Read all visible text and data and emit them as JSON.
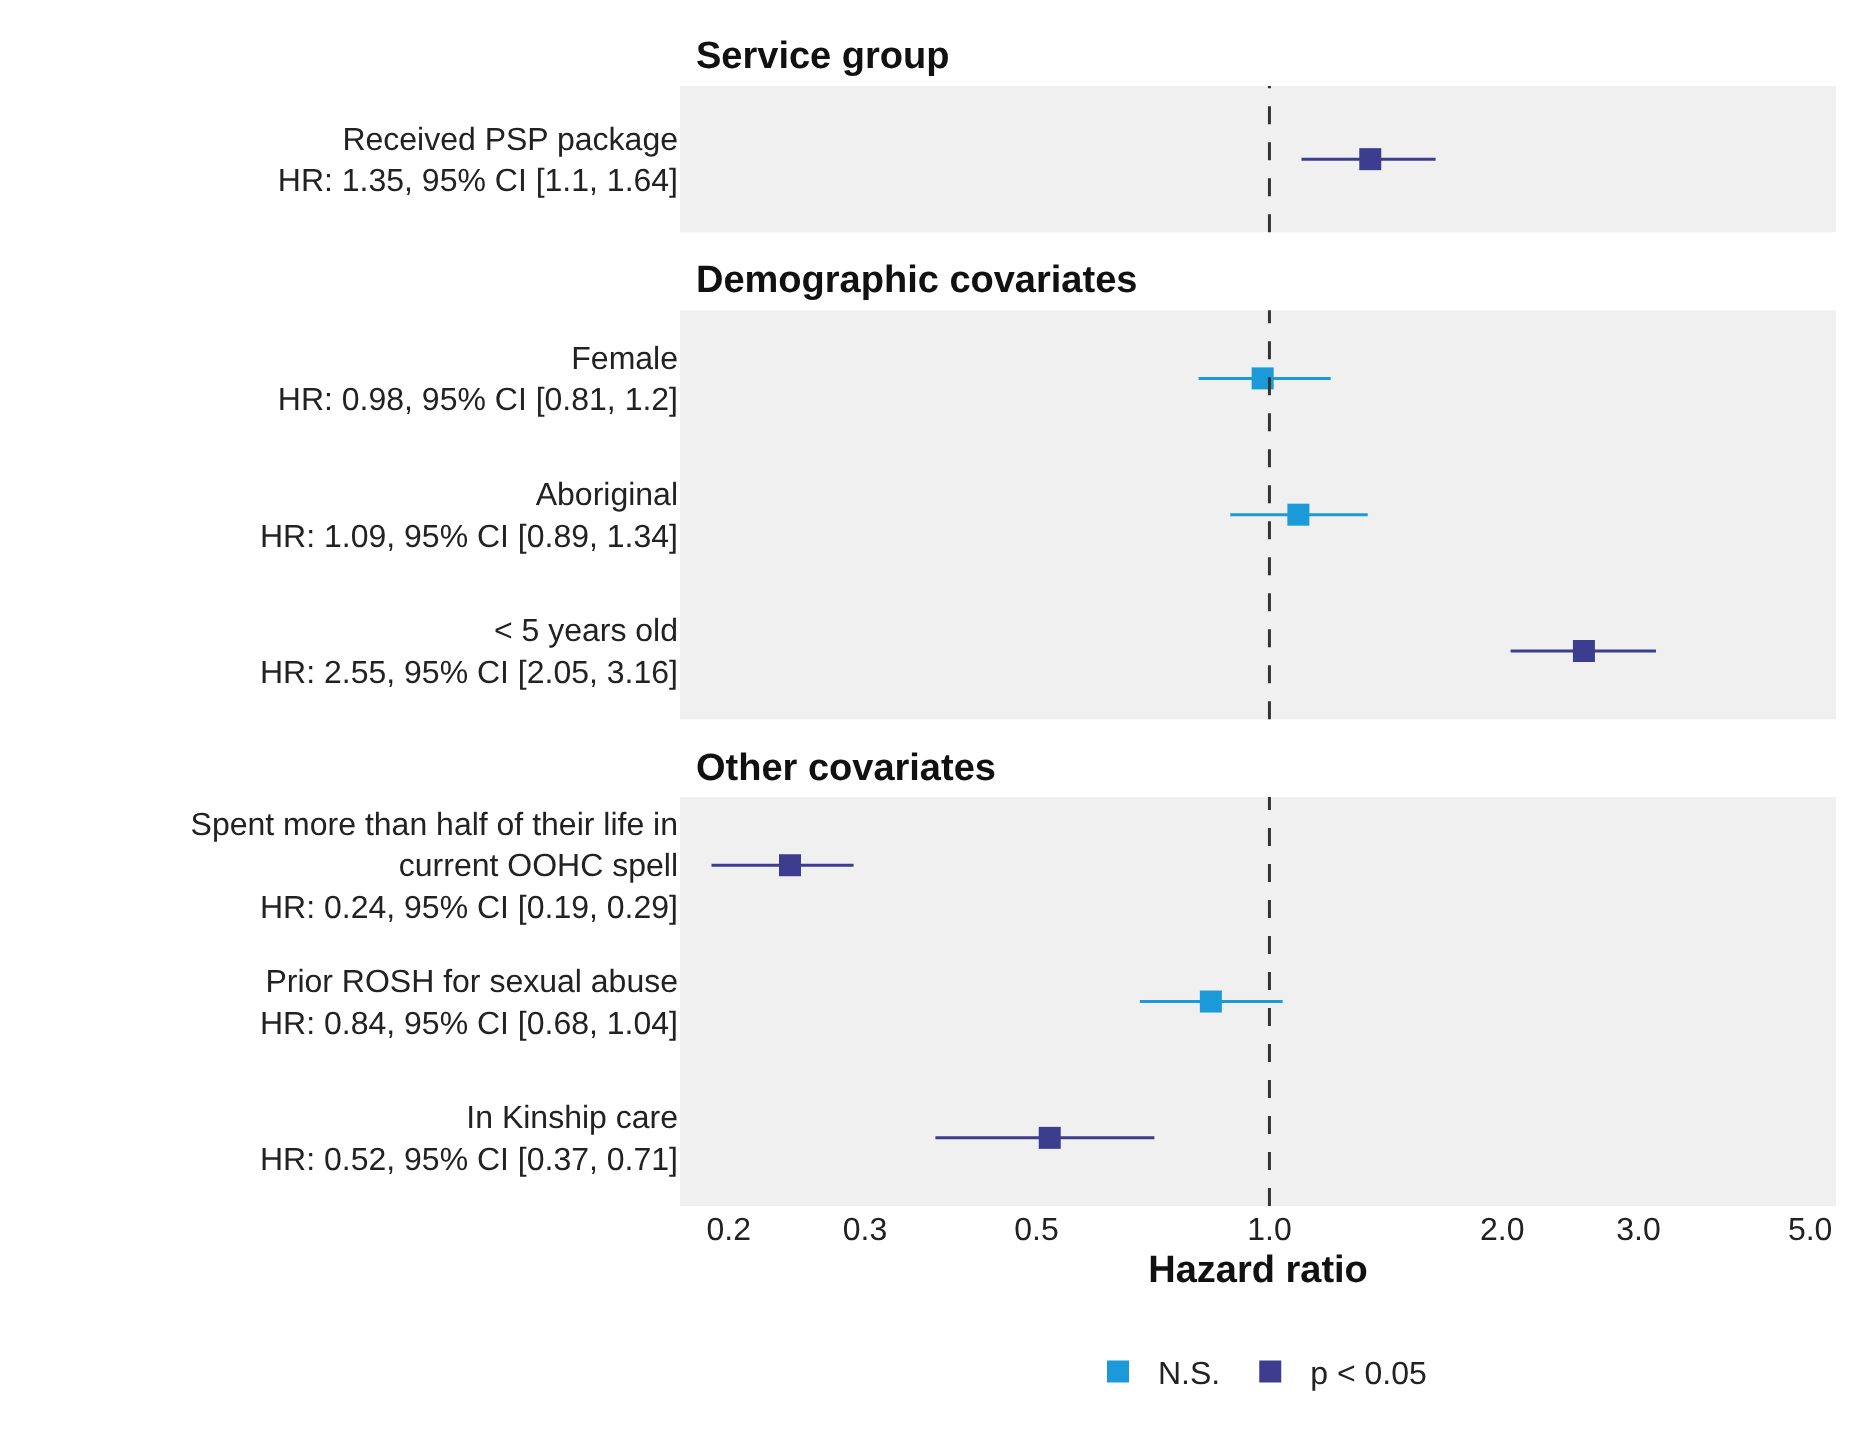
{
  "chart_data": [
    {
      "type": "scatter",
      "orientation": "horizontal",
      "title": "Service group",
      "categories": [
        "Received PSP package\nHR: 1.35, 95% CI [1.1, 1.64]"
      ],
      "series": [
        {
          "color": "#3d3d8f",
          "values": [
            1.35
          ],
          "errors": [
            [
              1.1,
              1.64
            ]
          ]
        }
      ],
      "xlim": [
        0.173,
        5.4
      ],
      "log": "x",
      "marker": "square",
      "tick_labels": "y",
      "ref_lines": [
        {
          "axis": "x",
          "value": 1,
          "color": "#333333",
          "line_style": "dashed"
        }
      ]
    },
    {
      "type": "scatter",
      "orientation": "horizontal",
      "title": "Demographic covariates",
      "categories": [
        "Female\nHR: 0.98, 95% CI [0.81, 1.2]",
        "Aboriginal\nHR: 1.09, 95% CI [0.89, 1.34]",
        "< 5 years old\nHR: 2.55, 95% CI [2.05, 3.16]"
      ],
      "series": [
        {
          "color": "#1a9ad8",
          "values": [
            0.98,
            1.09,
            null
          ],
          "errors": [
            [
              0.81,
              1.2
            ],
            [
              0.89,
              1.34
            ],
            null
          ]
        },
        {
          "color": "#3d3d8f",
          "values": [
            null,
            null,
            2.55
          ],
          "errors": [
            null,
            null,
            [
              2.05,
              3.16
            ]
          ]
        }
      ],
      "xlim": [
        0.173,
        5.4
      ],
      "log": "x",
      "marker": "square",
      "tick_labels": "y",
      "ref_lines": [
        {
          "axis": "x",
          "value": 1,
          "color": "#333333",
          "line_style": "dashed"
        }
      ]
    },
    {
      "type": "scatter",
      "orientation": "horizontal",
      "title": "Other covariates",
      "xlabel": "Hazard ratio",
      "categories": [
        "Spent more than half of their life in\ncurrent OOHC spell\nHR: 0.24, 95% CI [0.19, 0.29]",
        "Prior ROSH for sexual abuse\nHR: 0.84, 95% CI [0.68, 1.04]",
        "In Kinship care\nHR: 0.52, 95% CI [0.37, 0.71]"
      ],
      "series": [
        {
          "name": "N.S.",
          "color": "#1a9ad8",
          "values": [
            null,
            0.84,
            null
          ],
          "errors": [
            null,
            [
              0.68,
              1.04
            ],
            null
          ]
        },
        {
          "name": "p < 0.05",
          "color": "#3d3d8f",
          "values": [
            0.24,
            null,
            0.52
          ],
          "errors": [
            [
              0.19,
              0.29
            ],
            null,
            [
              0.37,
              0.71
            ]
          ]
        }
      ],
      "xlim": [
        0.173,
        5.4
      ],
      "xticks": [
        0.2,
        0.3,
        0.5,
        {
          "value": 1,
          "label": "1.0"
        },
        {
          "value": 2,
          "label": "2.0"
        },
        {
          "value": 3,
          "label": "3.0"
        },
        {
          "value": 5,
          "label": "5.0"
        }
      ],
      "log": "x",
      "marker": "square",
      "legend": "bottom",
      "ref_lines": [
        {
          "axis": "x",
          "value": 1,
          "color": "#333333",
          "line_style": "dashed"
        }
      ]
    }
  ]
}
